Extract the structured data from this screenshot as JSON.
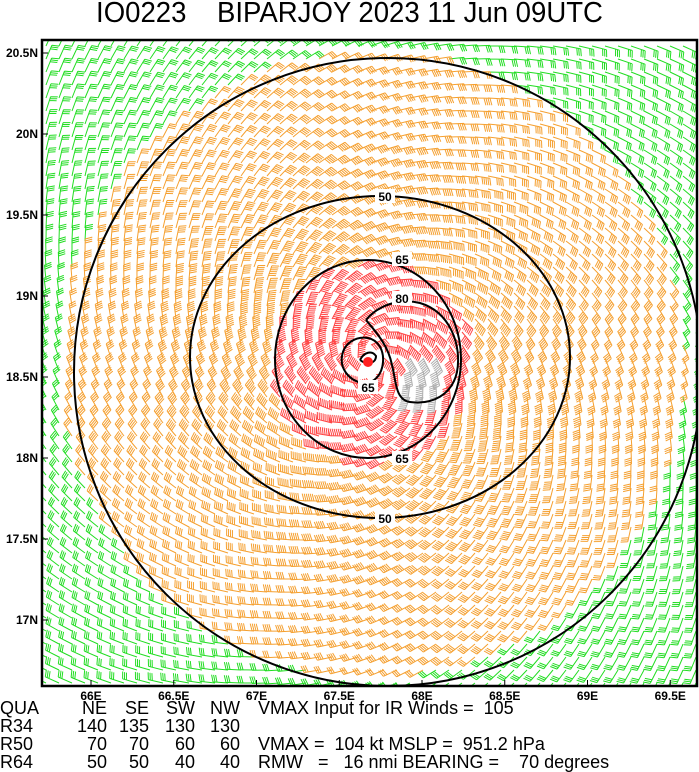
{
  "title": "IO0223    BIPARJOY 2023 11 Jun 09UTC",
  "map": {
    "lat_labels": [
      "20.5N",
      "20N",
      "19.5N",
      "19N",
      "18.5N",
      "18N",
      "17.5N",
      "17N"
    ],
    "lat_values": [
      20.5,
      20,
      19.5,
      19,
      18.5,
      18,
      17.5,
      17
    ],
    "lon_labels": [
      "66E",
      "66.5E",
      "67E",
      "67.5E",
      "68E",
      "68.5E",
      "69E",
      "69.5E"
    ],
    "lon_values": [
      66,
      66.5,
      67,
      67.5,
      68,
      68.5,
      69,
      69.5
    ],
    "lon_range": [
      65.7,
      69.7
    ],
    "lat_range": [
      16.6,
      20.6
    ],
    "storm_center": {
      "lon": 67.7,
      "lat": 18.58
    },
    "contour_labels": {
      "c50_top": "50",
      "c65_top": "65",
      "c80": "80",
      "c65_inner": "65",
      "c65_bottom": "65",
      "c50_bottom": "50"
    },
    "wind_colors": {
      "below_34kt": "#22dd22",
      "34_to_64kt": "#f5a030",
      "64_to_80kt": "#ff4444",
      "above_80kt": "#b0b0b0",
      "contour": "#000000",
      "center": "#ff2020"
    }
  },
  "info": {
    "header": [
      "QUA",
      "NE",
      "SE",
      "SW",
      "NW"
    ],
    "rows": [
      [
        "R34",
        "140",
        "135",
        "130",
        "130"
      ],
      [
        "R50",
        "70",
        "70",
        "60",
        "60"
      ],
      [
        "R64",
        "50",
        "50",
        "40",
        "40"
      ]
    ],
    "vmax_input": "VMAX Input for IR Winds =  105",
    "vmax_mslp": "VMAX =  104 kt MSLP =  951.2 hPa",
    "rmw_bearing": "RMW   =   16 nmi BEARING =    70 degrees"
  }
}
